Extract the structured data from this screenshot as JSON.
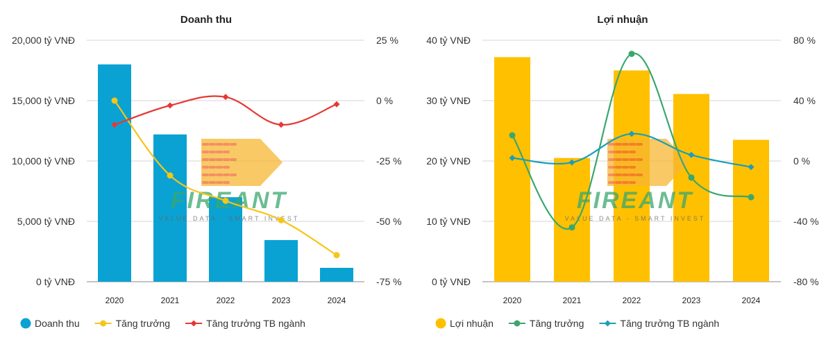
{
  "watermark": {
    "brand": "FIREANT",
    "tagline": "VALUE DATA - SMART INVEST"
  },
  "chart_data": [
    {
      "type": "bar",
      "title": "Doanh thu",
      "categories": [
        "2020",
        "2021",
        "2022",
        "2023",
        "2024"
      ],
      "left_axis": {
        "ticks": [
          "0 tỷ VNĐ",
          "5,000 tỷ VNĐ",
          "10,000 tỷ VNĐ",
          "15,000 tỷ VNĐ",
          "20,000 tỷ VNĐ"
        ],
        "range": [
          0,
          20000
        ]
      },
      "right_axis": {
        "ticks": [
          "-75 %",
          "-50 %",
          "-25 %",
          "0 %",
          "25 %"
        ],
        "range": [
          -75,
          25
        ]
      },
      "bar_color": "#0aa2d3",
      "series": [
        {
          "name": "Doanh thu",
          "kind": "bar",
          "axis": "left",
          "color": "#0aa2d3",
          "values": [
            18000,
            12200,
            7000,
            3450,
            1150
          ]
        },
        {
          "name": "Tăng trưởng",
          "kind": "line",
          "axis": "right",
          "color": "#f5c518",
          "values": [
            0,
            -31,
            -41.5,
            -49.5,
            -64
          ]
        },
        {
          "name": "Tăng trưởng TB ngành",
          "kind": "line",
          "axis": "right",
          "color": "#e53935",
          "values": [
            -10,
            -2,
            1.5,
            -10,
            -1.5
          ]
        }
      ],
      "grid": true,
      "legend_position": "bottom-left"
    },
    {
      "type": "bar",
      "title": "Lợi nhuận",
      "categories": [
        "2020",
        "2021",
        "2022",
        "2023",
        "2024"
      ],
      "left_axis": {
        "ticks": [
          "0 tỷ VNĐ",
          "10 tỷ VNĐ",
          "20 tỷ VNĐ",
          "30 tỷ VNĐ",
          "40 tỷ VNĐ"
        ],
        "range": [
          0,
          40
        ]
      },
      "right_axis": {
        "ticks": [
          "-80 %",
          "-40 %",
          "0 %",
          "40 %",
          "80 %"
        ],
        "range": [
          -80,
          80
        ]
      },
      "bar_color": "#ffc000",
      "series": [
        {
          "name": "Lợi nhuận",
          "kind": "bar",
          "axis": "left",
          "color": "#ffc000",
          "values": [
            37.2,
            20.5,
            35,
            31.1,
            23.5
          ]
        },
        {
          "name": "Tăng trưởng",
          "kind": "line",
          "axis": "right",
          "color": "#3aa76d",
          "values": [
            17,
            -44,
            71,
            -11,
            -24
          ]
        },
        {
          "name": "Tăng trưởng TB ngành",
          "kind": "line",
          "axis": "right",
          "color": "#1b9ebb",
          "values": [
            2,
            -1,
            18,
            4,
            -4
          ]
        }
      ],
      "grid": true,
      "legend_position": "bottom-left"
    }
  ]
}
